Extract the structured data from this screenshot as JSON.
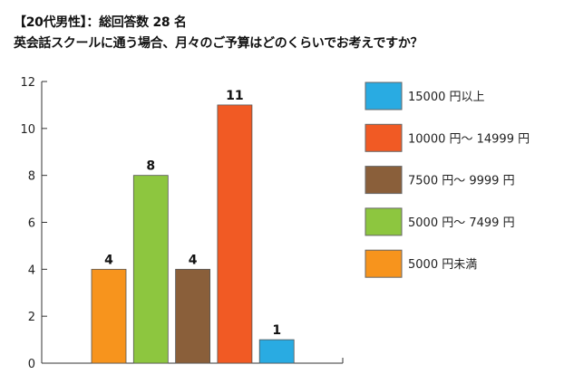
{
  "chart_data": {
    "type": "bar",
    "title": "【20代男性】：総回答数 28 名",
    "subtitle": "英会話スクールに通う場合、月々のご予算はどのくらいでお考えですか？",
    "categories": [
      "5000円未満",
      "5000円〜 7499円",
      "7500円〜 9999円",
      "10000円〜 14999円",
      "15000円以上"
    ],
    "values": [
      4,
      8,
      4,
      11,
      1
    ],
    "colors": [
      "#f7941d",
      "#8dc63f",
      "#8a5f3a",
      "#f15a24",
      "#29abe2"
    ],
    "ylim": [
      0,
      12
    ],
    "yticks": [
      0,
      2,
      4,
      6,
      8,
      10,
      12
    ],
    "xlabel": "",
    "ylabel": "",
    "grid": false,
    "legend_placement": "right",
    "legend": [
      {
        "label": "15000 円以上",
        "color": "#29abe2"
      },
      {
        "label": "10000 円〜 14999 円",
        "color": "#f15a24"
      },
      {
        "label": "7500 円〜 9999 円",
        "color": "#8a5f3a"
      },
      {
        "label": "5000 円〜 7499 円",
        "color": "#8dc63f"
      },
      {
        "label": "5000 円未満",
        "color": "#f7941d"
      }
    ]
  }
}
